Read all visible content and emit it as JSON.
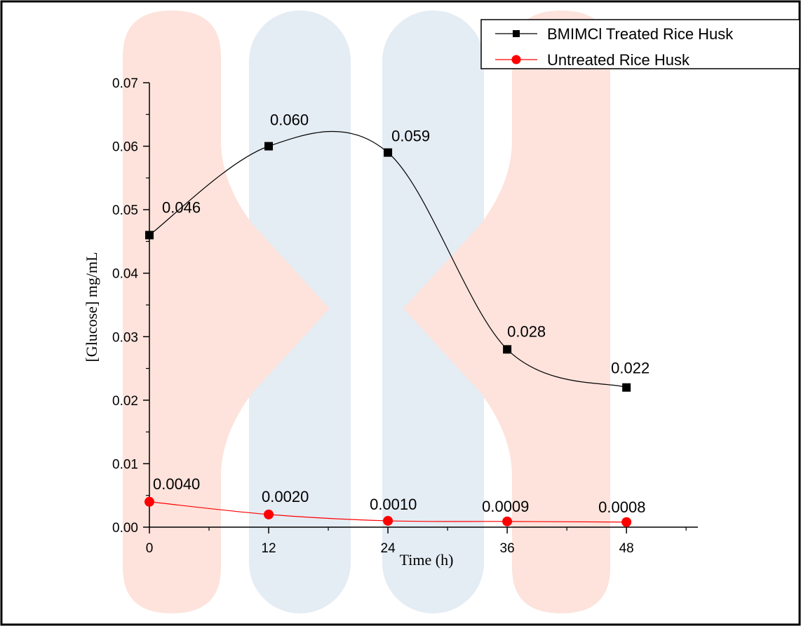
{
  "chart_data": {
    "type": "line",
    "xlabel": "Time (h)",
    "ylabel": "[Glucose] mg/mL",
    "xlim": [
      0,
      54
    ],
    "ylim": [
      0,
      0.07
    ],
    "x_ticks": [
      "0",
      "12",
      "24",
      "36",
      "48"
    ],
    "y_ticks": [
      "0.00",
      "0.01",
      "0.02",
      "0.03",
      "0.04",
      "0.05",
      "0.06",
      "0.07"
    ],
    "grid": false,
    "legend_position": "top-right",
    "series": [
      {
        "name": "BMIMCl Treated Rice Husk",
        "color": "#000000",
        "marker": "square",
        "smooth": true,
        "x": [
          0,
          12,
          24,
          36,
          48
        ],
        "values": [
          0.046,
          0.06,
          0.059,
          0.028,
          0.022
        ],
        "labels": [
          "0.046",
          "0.060",
          "0.059",
          "0.028",
          "0.022"
        ]
      },
      {
        "name": "Untreated Rice Husk",
        "color": "#ff0000",
        "marker": "circle",
        "smooth": true,
        "x": [
          0,
          12,
          24,
          36,
          48
        ],
        "values": [
          0.004,
          0.002,
          0.001,
          0.0009,
          0.0008
        ],
        "labels": [
          "0.0040",
          "0.0020",
          "0.0010",
          "0.0009",
          "0.0008"
        ]
      }
    ]
  },
  "watermark": {
    "name": "logo-watermark",
    "colors": [
      "#fde3dc",
      "#e3ecf4"
    ]
  }
}
